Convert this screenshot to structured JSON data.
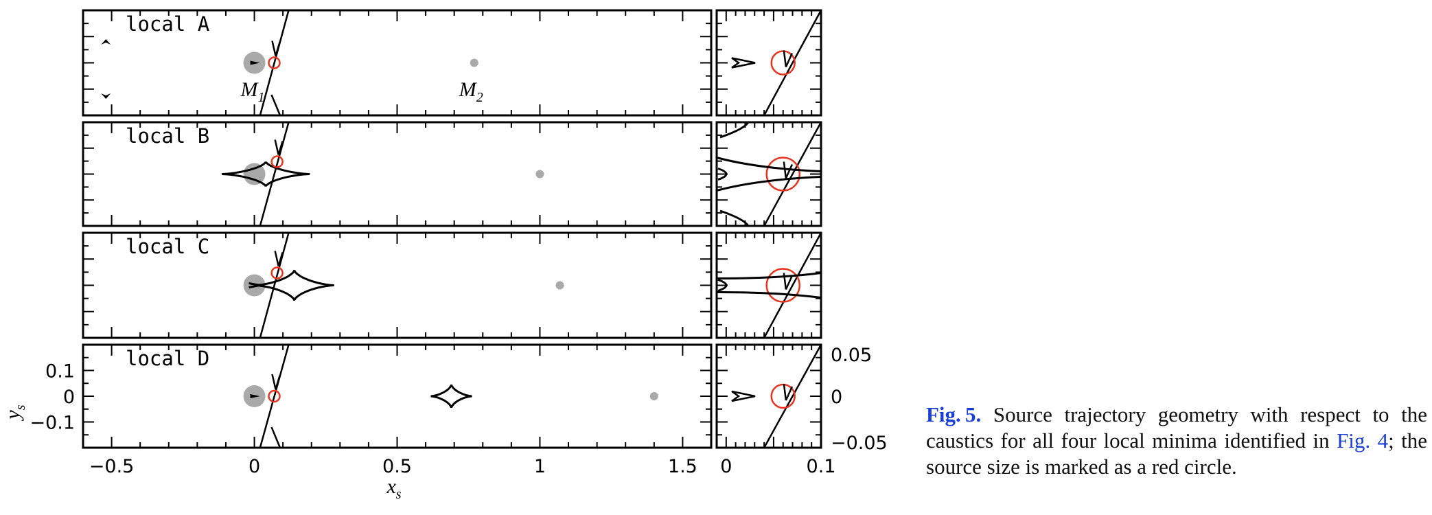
{
  "figure": {
    "panels": [
      {
        "label": "local A",
        "m1_label": "M",
        "m1_sub": "1",
        "m2_label": "M",
        "m2_sub": "2"
      },
      {
        "label": "local B"
      },
      {
        "label": "local C"
      },
      {
        "label": "local D"
      }
    ],
    "left_xticks": [
      "−0.5",
      "0",
      "0.5",
      "1",
      "1.5"
    ],
    "left_yticks": [
      "0.1",
      "0",
      "−0.1"
    ],
    "right_xticks": [
      "0",
      "0.1"
    ],
    "right_yticks": [
      "0.05",
      "0",
      "−0.05"
    ],
    "xlabel_main": "x",
    "xlabel_sub": "s",
    "ylabel_main": "y",
    "ylabel_sub": "s",
    "colors": {
      "source": "#e8331f",
      "mass": "#a9a9a9",
      "line": "#000000"
    }
  },
  "caption": {
    "label": "Fig. 5.",
    "text_before": " Source trajectory geometry with respect to the caustics for all four local minima identified in ",
    "ref": "Fig. 4",
    "text_after": "; the source size is marked as a red circle."
  },
  "chart_data": {
    "type": "scatter",
    "title": "",
    "xlabel": "x_s",
    "ylabel": "y_s",
    "left_panels_xlim": [
      -0.6,
      1.6
    ],
    "left_panels_ylim": [
      -0.16,
      0.16
    ],
    "right_panels_xlim": [
      -0.01,
      0.1
    ],
    "right_panels_ylim": [
      -0.065,
      0.065
    ],
    "grid": false,
    "series": [
      {
        "name": "local A",
        "M1": [
          0,
          0
        ],
        "M2": [
          0.77,
          0
        ],
        "source": [
          0.06,
          0
        ]
      },
      {
        "name": "local B",
        "M1": [
          0,
          0
        ],
        "M2": [
          1.0,
          0
        ],
        "source": [
          0.07,
          0.04
        ]
      },
      {
        "name": "local C",
        "M1": [
          0,
          0
        ],
        "M2": [
          1.07,
          0
        ],
        "source": [
          0.07,
          0.04
        ]
      },
      {
        "name": "local D",
        "M1": [
          0,
          0
        ],
        "M2": [
          1.4,
          0
        ],
        "source": [
          0.06,
          0
        ]
      }
    ]
  }
}
